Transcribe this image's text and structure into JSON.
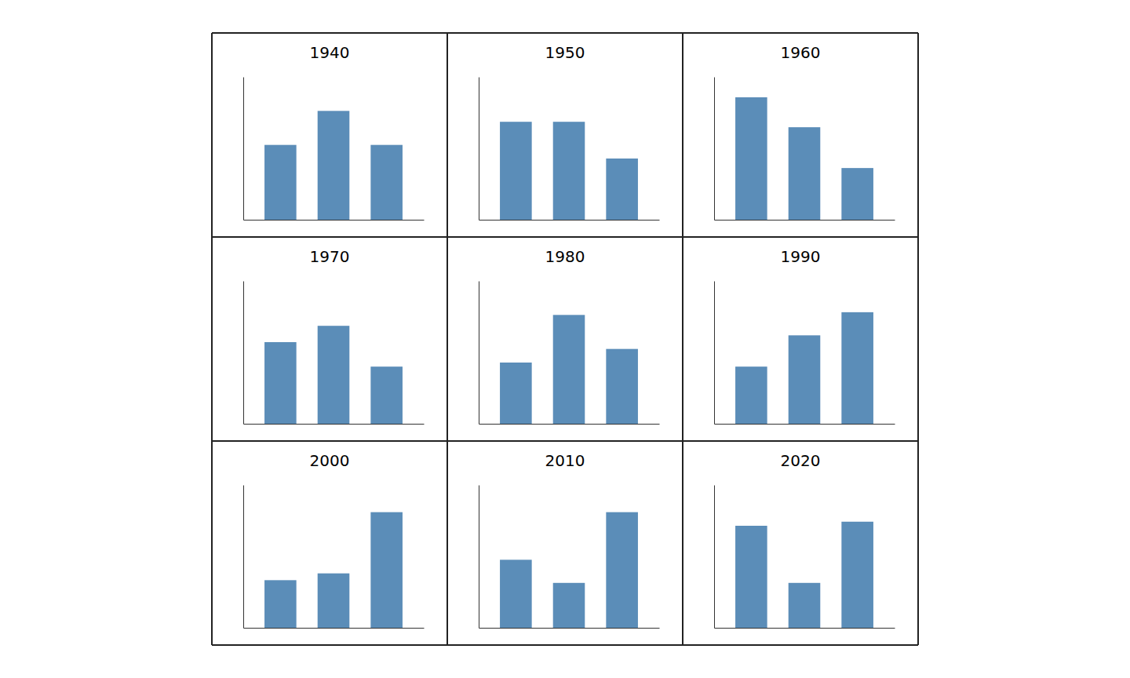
{
  "chart_data": [
    {
      "type": "bar",
      "title": "1940",
      "categories": [
        null,
        null,
        null
      ],
      "values": [
        0.55,
        0.8,
        0.55
      ],
      "color": "#5b8db8",
      "ylim": [
        0,
        1.05
      ],
      "tick_labels": false
    },
    {
      "type": "bar",
      "title": "1950",
      "categories": [
        null,
        null,
        null
      ],
      "values": [
        0.72,
        0.72,
        0.45
      ],
      "color": "#5b8db8",
      "ylim": [
        0,
        1.05
      ],
      "tick_labels": false
    },
    {
      "type": "bar",
      "title": "1960",
      "categories": [
        null,
        null,
        null
      ],
      "values": [
        0.9,
        0.68,
        0.38
      ],
      "color": "#5b8db8",
      "ylim": [
        0,
        1.05
      ],
      "tick_labels": false
    },
    {
      "type": "bar",
      "title": "1970",
      "categories": [
        null,
        null,
        null
      ],
      "values": [
        0.6,
        0.72,
        0.42
      ],
      "color": "#5b8db8",
      "ylim": [
        0,
        1.05
      ],
      "tick_labels": false
    },
    {
      "type": "bar",
      "title": "1980",
      "categories": [
        null,
        null,
        null
      ],
      "values": [
        0.45,
        0.8,
        0.55
      ],
      "color": "#5b8db8",
      "ylim": [
        0,
        1.05
      ],
      "tick_labels": false
    },
    {
      "type": "bar",
      "title": "1990",
      "categories": [
        null,
        null,
        null
      ],
      "values": [
        0.42,
        0.65,
        0.82
      ],
      "color": "#5b8db8",
      "ylim": [
        0,
        1.05
      ],
      "tick_labels": false
    },
    {
      "type": "bar",
      "title": "2000",
      "categories": [
        null,
        null,
        null
      ],
      "values": [
        0.35,
        0.4,
        0.85
      ],
      "color": "#5b8db8",
      "ylim": [
        0,
        1.05
      ],
      "tick_labels": false
    },
    {
      "type": "bar",
      "title": "2010",
      "categories": [
        null,
        null,
        null
      ],
      "values": [
        0.5,
        0.33,
        0.85
      ],
      "color": "#5b8db8",
      "ylim": [
        0,
        1.05
      ],
      "tick_labels": false
    },
    {
      "type": "bar",
      "title": "2020",
      "categories": [
        null,
        null,
        null
      ],
      "values": [
        0.75,
        0.33,
        0.78
      ],
      "color": "#5b8db8",
      "ylim": [
        0,
        1.05
      ],
      "tick_labels": false
    }
  ]
}
